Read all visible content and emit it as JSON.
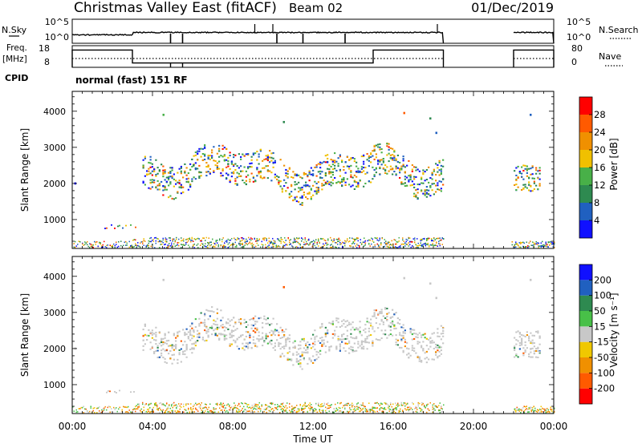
{
  "header": {
    "station": "Christmas Valley East (fitACF)",
    "beam": "Beam 02",
    "date": "01/Dec/2019"
  },
  "nsky_panel": {
    "left_label": "N.Sky",
    "right_label": "N.Search",
    "left_ticks": [
      "10^5",
      "10^0"
    ],
    "right_ticks": [
      "10^5",
      "10^0"
    ]
  },
  "freq_panel": {
    "left_label_1": "Freq.",
    "left_label_2": "[MHz]",
    "right_label": "Nave",
    "left_ticks": [
      "18",
      "8"
    ],
    "right_ticks": [
      "80",
      "0"
    ]
  },
  "cpid": {
    "label": "CPID",
    "text": "normal (fast) 151 RF"
  },
  "colors": {
    "power": [
      "#1010ff",
      "#2060c0",
      "#2e8a50",
      "#48b048",
      "#f0c000",
      "#f09000",
      "#ff5a00",
      "#ff0000"
    ],
    "velocity": [
      "#ff0000",
      "#ff5a00",
      "#f09000",
      "#f0c800",
      "#c8c8c8",
      "#48c048",
      "#2e8a50",
      "#2060c0",
      "#1010ff"
    ]
  },
  "chart_data": [
    {
      "type": "heatmap",
      "name": "Power",
      "ylabel": "Slant Range [km]",
      "yticks": [
        1000,
        2000,
        3000,
        4000
      ],
      "ylim": [
        200,
        4550
      ],
      "xlim_hours": [
        0,
        24
      ],
      "colorbar_label": "Power [dB]",
      "colorbar_ticks": [
        "4",
        "8",
        "12",
        "16",
        "20",
        "24",
        "28"
      ],
      "colorbar_range": [
        0,
        30
      ],
      "data_gaps_UT": [
        [
          18.5,
          22.0
        ]
      ],
      "structures": [
        {
          "feature": "scatter band",
          "start_UT": 3.5,
          "end_UT": 18.5,
          "range_km": [
            1800,
            3000
          ],
          "power_dB": [
            4,
            20
          ]
        },
        {
          "feature": "scatter patch",
          "start_UT": 22.0,
          "end_UT": 23.3,
          "range_km": [
            1800,
            2500
          ],
          "power_dB": [
            4,
            20
          ]
        },
        {
          "feature": "near-range echoes",
          "start_UT": 0.0,
          "end_UT": 24.0,
          "range_km": [
            200,
            450
          ],
          "power_dB": [
            4,
            30
          ]
        }
      ]
    },
    {
      "type": "heatmap",
      "name": "Velocity",
      "ylabel": "Slant Range [km]",
      "xlabel": "Time UT",
      "xticks": [
        "00:00",
        "04:00",
        "08:00",
        "12:00",
        "16:00",
        "20:00",
        "00:00"
      ],
      "yticks": [
        1000,
        2000,
        3000,
        4000
      ],
      "ylim": [
        200,
        4550
      ],
      "xlim_hours": [
        0,
        24
      ],
      "colorbar_label": "Velocity [m s⁻¹]",
      "colorbar_ticks": [
        "-200",
        "-100",
        "-50",
        "-15",
        "15",
        "50",
        "100",
        "200"
      ],
      "data_gaps_UT": [
        [
          18.5,
          22.0
        ]
      ],
      "structures": [
        {
          "feature": "scatter band",
          "start_UT": 3.5,
          "end_UT": 18.5,
          "range_km": [
            1800,
            3000
          ],
          "velocity_ms": [
            -15,
            15
          ]
        },
        {
          "feature": "near-range echoes",
          "start_UT": 0.0,
          "end_UT": 18.5,
          "range_km": [
            200,
            500
          ],
          "velocity_ms": [
            -100,
            50
          ]
        }
      ]
    },
    {
      "type": "line",
      "name": "Frequency",
      "ylim": [
        8,
        18
      ],
      "segments_UT_MHz": [
        [
          0,
          3,
          16
        ],
        [
          3,
          15,
          10
        ],
        [
          15,
          18.5,
          16
        ],
        [
          22,
          24,
          16
        ]
      ]
    }
  ]
}
